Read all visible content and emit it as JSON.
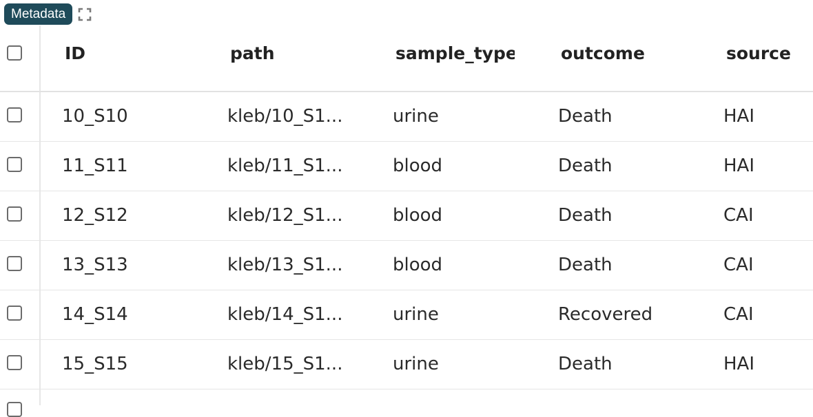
{
  "toolbar": {
    "badge_label": "Metadata",
    "expand_icon": "expand-icon"
  },
  "table": {
    "columns": [
      "ID",
      "path",
      "sample_type",
      "outcome",
      "source"
    ],
    "rows": [
      {
        "id": "10_S10",
        "path": "kleb/10_S1...",
        "sample_type": "urine",
        "outcome": "Death",
        "source": "HAI"
      },
      {
        "id": "11_S11",
        "path": "kleb/11_S1...",
        "sample_type": "blood",
        "outcome": "Death",
        "source": "HAI"
      },
      {
        "id": "12_S12",
        "path": "kleb/12_S1...",
        "sample_type": "blood",
        "outcome": "Death",
        "source": "CAI"
      },
      {
        "id": "13_S13",
        "path": "kleb/13_S1...",
        "sample_type": "blood",
        "outcome": "Death",
        "source": "CAI"
      },
      {
        "id": "14_S14",
        "path": "kleb/14_S1...",
        "sample_type": "urine",
        "outcome": "Recovered",
        "source": "CAI"
      },
      {
        "id": "15_S15",
        "path": "kleb/15_S1...",
        "sample_type": "urine",
        "outcome": "Death",
        "source": "HAI"
      }
    ]
  }
}
